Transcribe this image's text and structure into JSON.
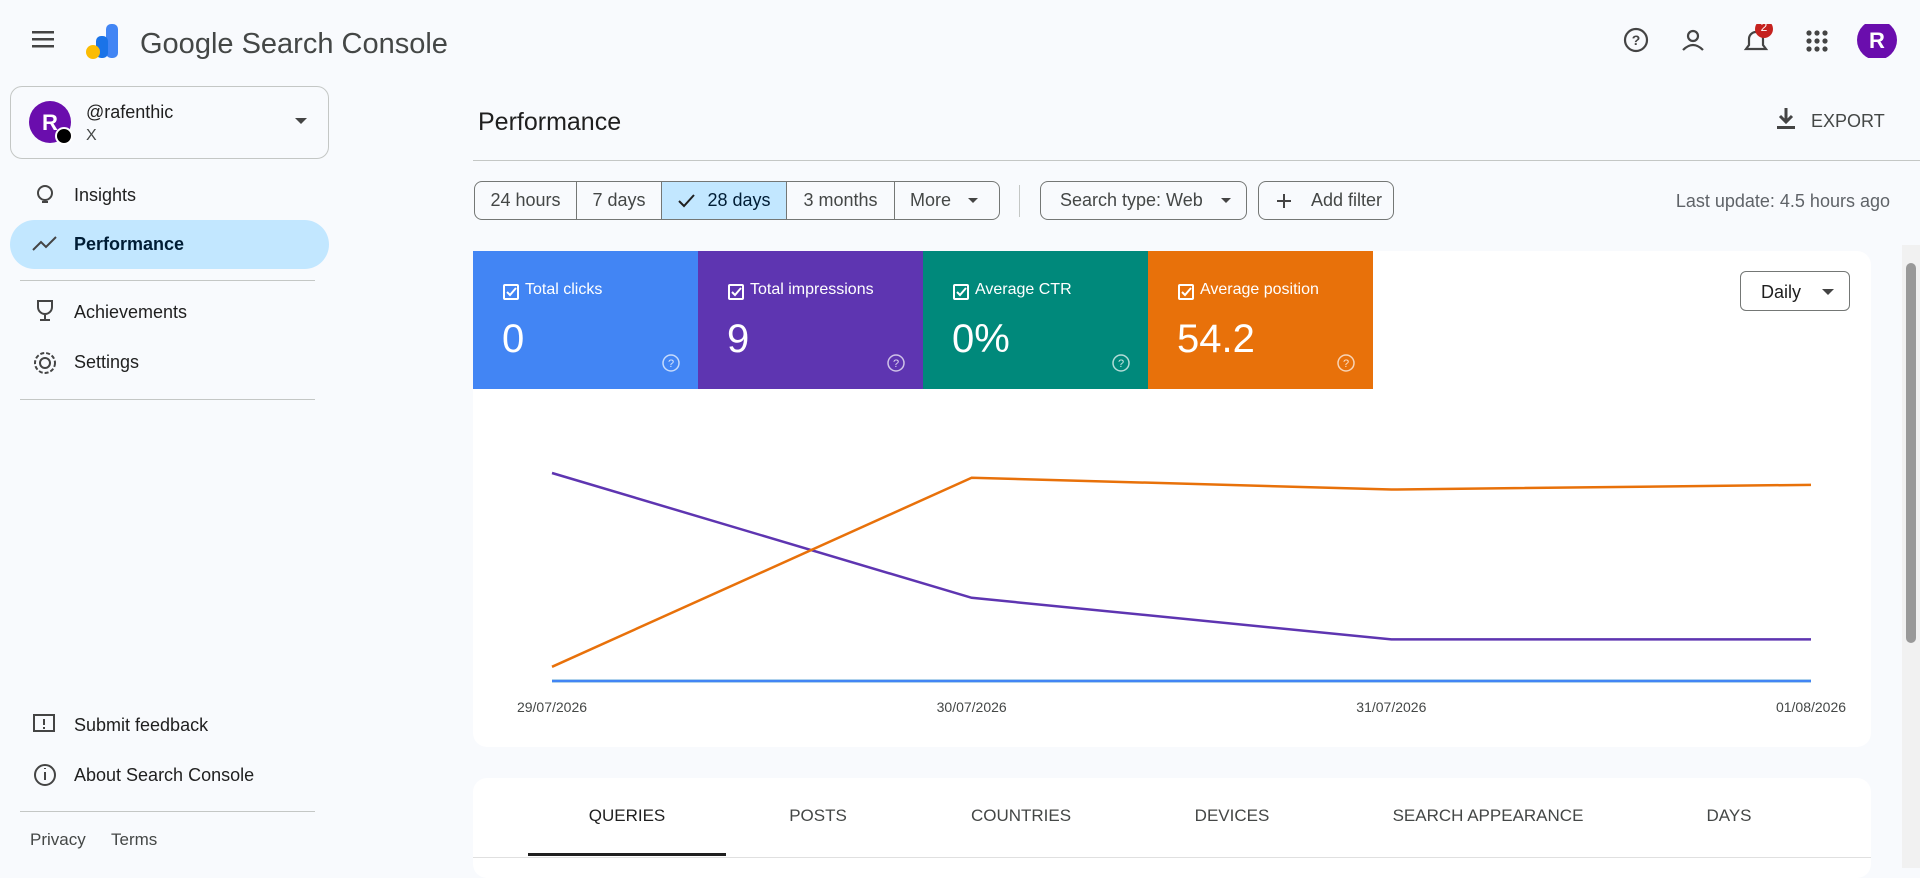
{
  "header": {
    "title": "Google Search Console"
  },
  "notifications": "2",
  "property": {
    "name": "@rafenthic",
    "type": "X"
  },
  "nav": [
    "Insights",
    "Performance",
    "Achievements",
    "Settings"
  ],
  "nav_bottom": [
    "Submit feedback",
    "About Search Console"
  ],
  "footer": [
    "Privacy",
    "Terms"
  ],
  "page_title": "Performance",
  "export": "EXPORT",
  "date_filters": [
    "24 hours",
    "7 days",
    "28 days",
    "3 months",
    "More"
  ],
  "selected_date_filter": "28 days",
  "search_type": "Search type: Web",
  "add_filter": "Add filter",
  "last_update": "Last update: 4.5 hours ago",
  "granularity": "Daily",
  "metric_totals": [
    "0",
    "9",
    "0%",
    "54.2"
  ],
  "chart_data": {
    "type": "line",
    "x": [
      "29/07/2026",
      "30/07/2026",
      "31/07/2026",
      "01/08/2026"
    ],
    "ylim": [
      0,
      5
    ],
    "y2lim": [
      95,
      7
    ],
    "series": [
      {
        "name": "Total clicks",
        "color": "#4285f4",
        "values": [
          0,
          0,
          0,
          0
        ]
      },
      {
        "name": "Total impressions",
        "color": "#5e35b1",
        "values": [
          5,
          2,
          1,
          1
        ]
      },
      {
        "name": "Average CTR",
        "color": "#00897b",
        "values": [
          0,
          0,
          0,
          0
        ]
      },
      {
        "name": "Average position",
        "color": "#e8710a",
        "values": [
          89,
          9,
          14,
          12
        ],
        "axis": "y2"
      }
    ]
  },
  "tabs": [
    "QUERIES",
    "POSTS",
    "COUNTRIES",
    "DEVICES",
    "SEARCH APPEARANCE",
    "DAYS"
  ],
  "selected_tab": "QUERIES"
}
